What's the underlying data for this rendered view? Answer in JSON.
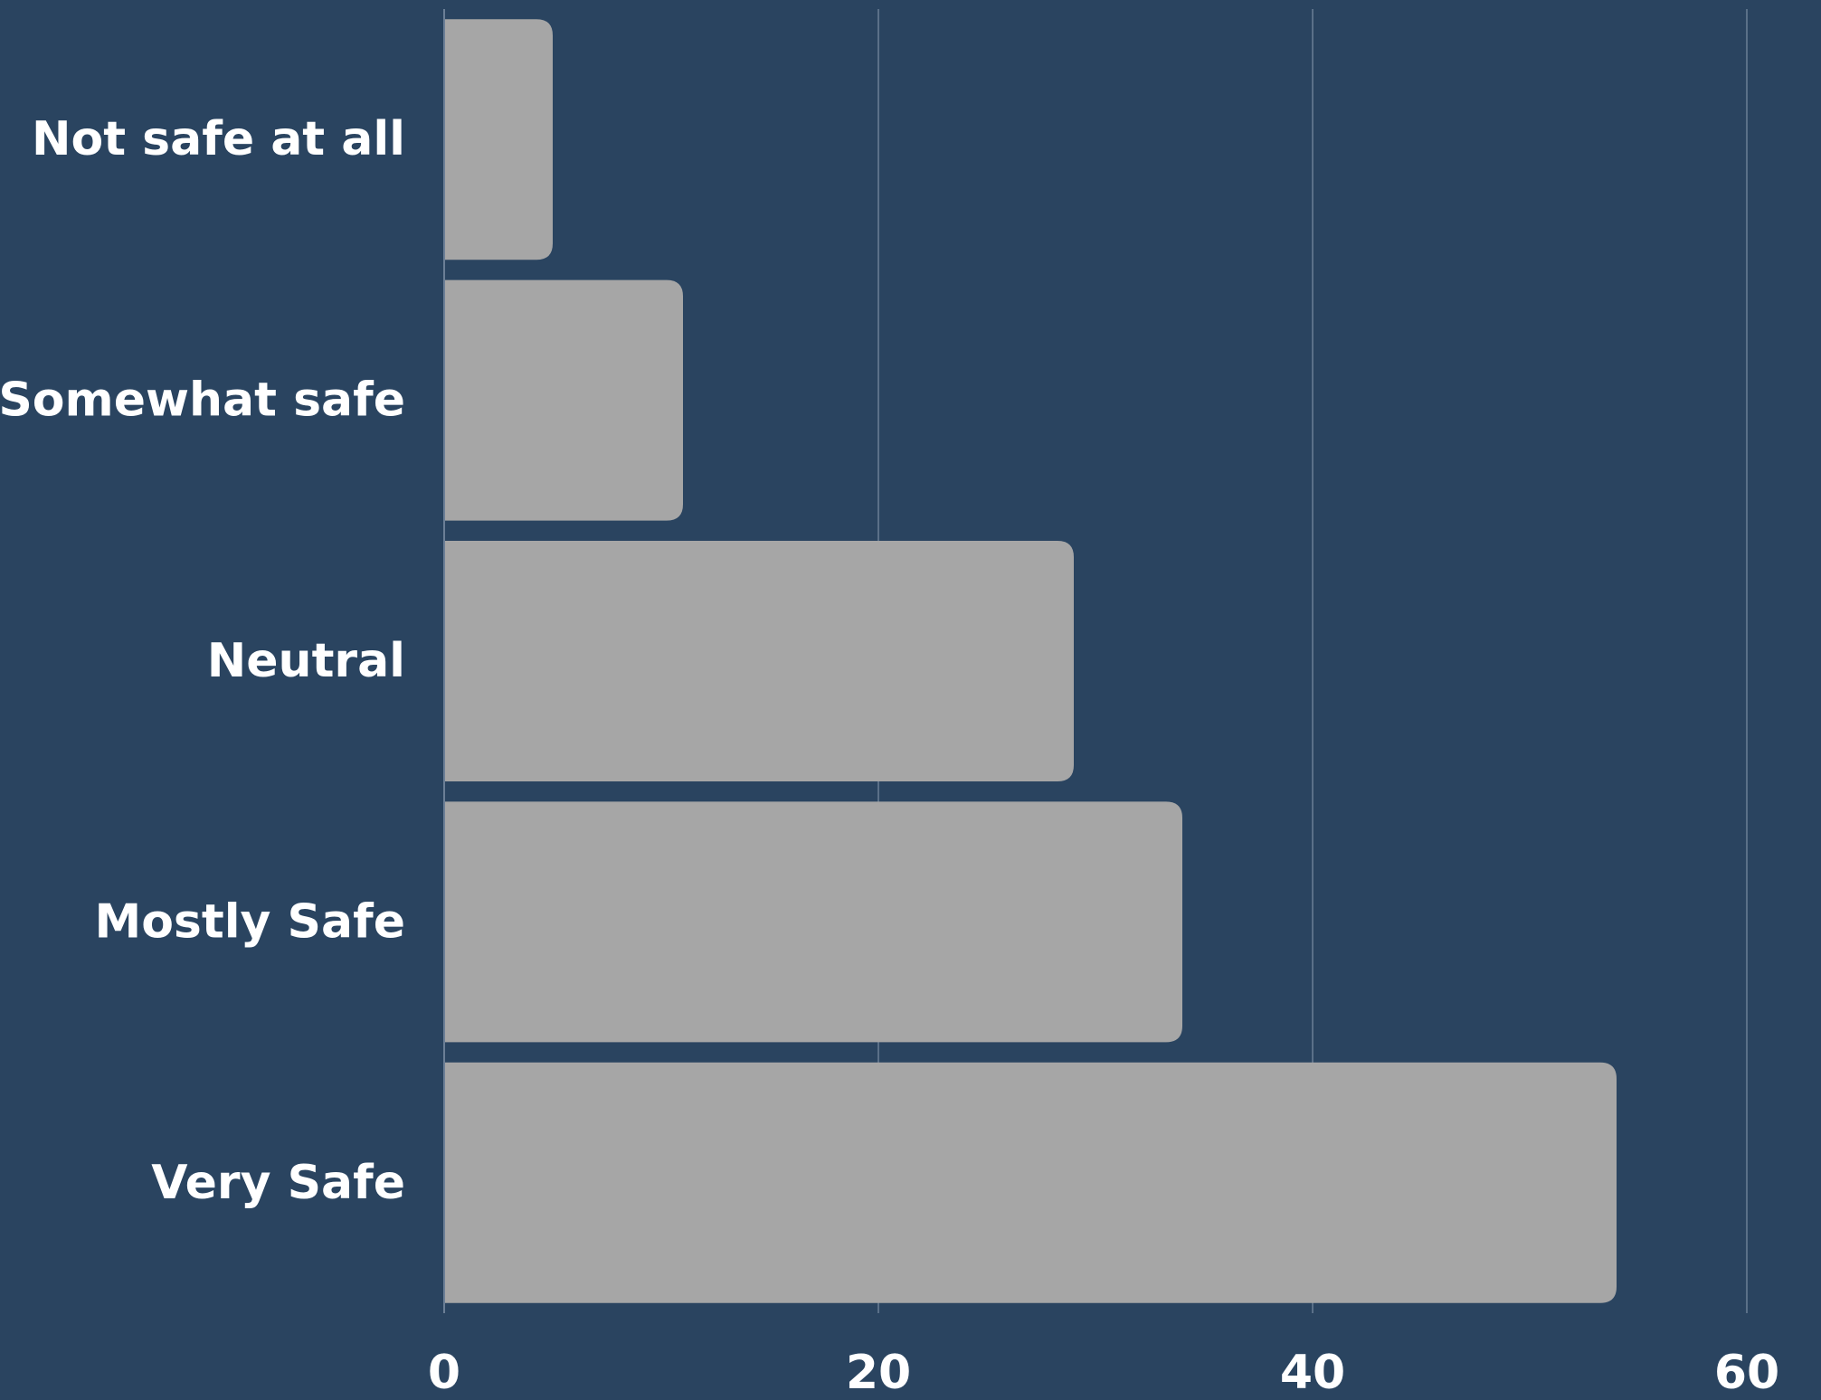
{
  "chart_data": {
    "type": "bar",
    "orientation": "horizontal",
    "categories": [
      "Not safe at all",
      "Somewhat safe",
      "Neutral",
      "Mostly Safe",
      "Very Safe"
    ],
    "values": [
      5,
      11,
      29,
      34,
      54
    ],
    "xlim": [
      0,
      60
    ],
    "x_ticks": [
      "0",
      "20",
      "40",
      "60"
    ],
    "grid": "vertical",
    "title": "",
    "xlabel": "",
    "ylabel": "",
    "colors": {
      "background": "#2a4460",
      "bar": "#a6a6a6",
      "text": "#ffffff",
      "grid": "#6b7f96"
    }
  }
}
